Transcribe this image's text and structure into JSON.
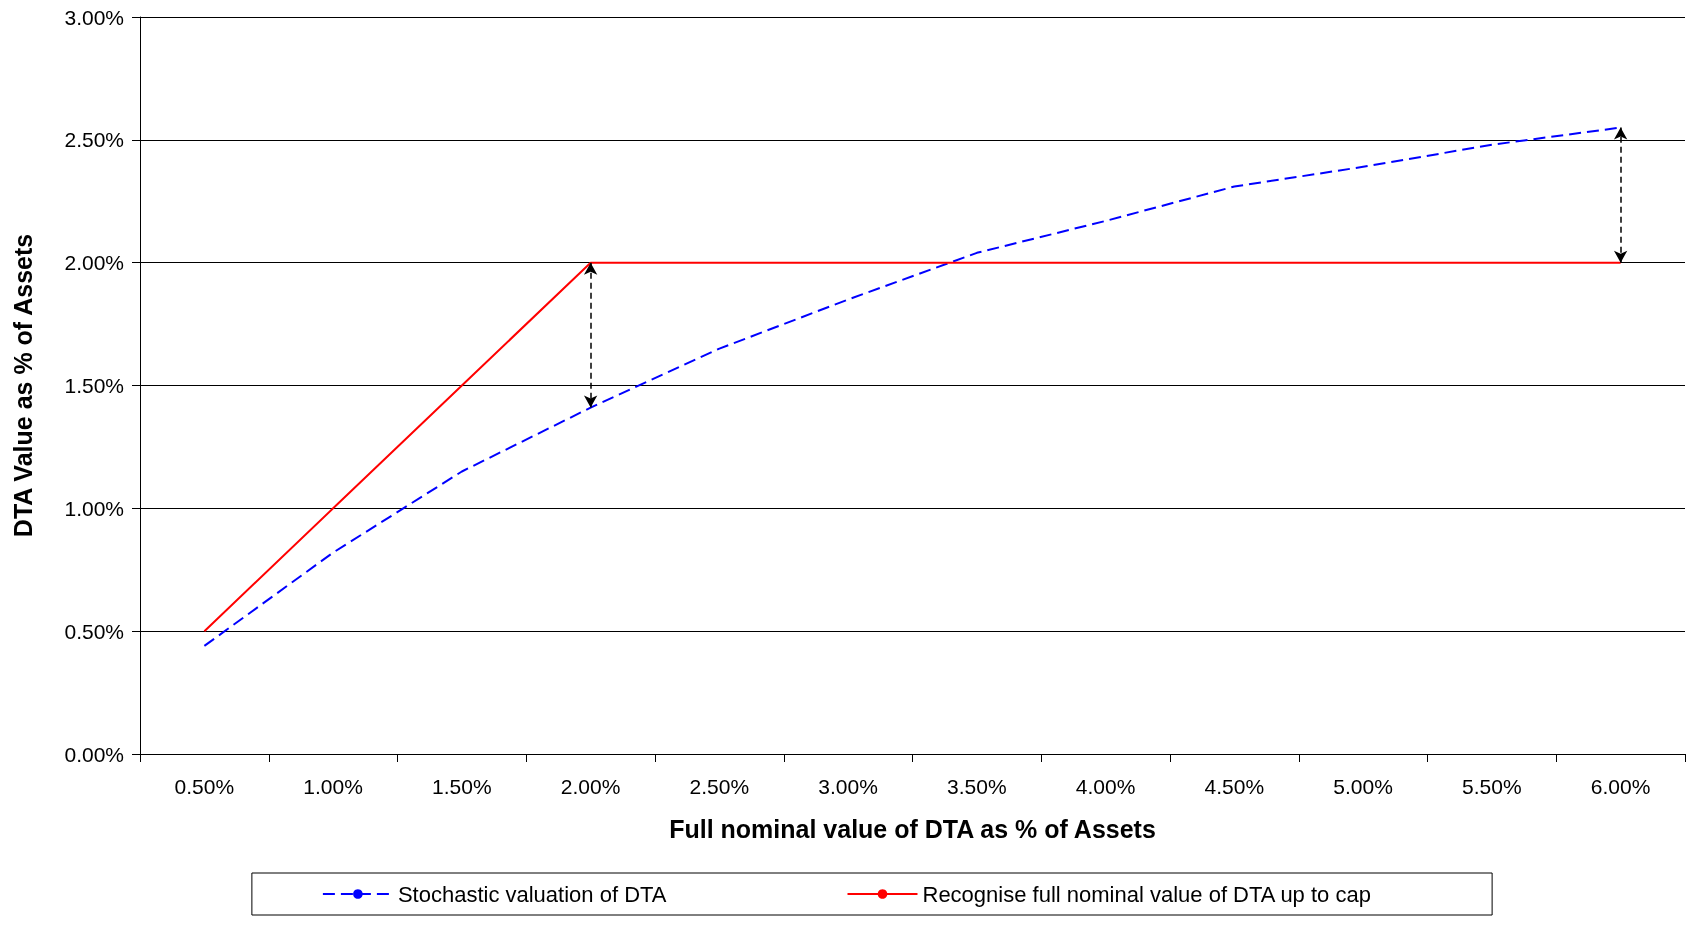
{
  "chart_data": {
    "type": "line",
    "xlabel": "Full nominal value of DTA as % of Assets",
    "ylabel": "DTA Value as % of Assets",
    "categories": [
      "0.50%",
      "1.00%",
      "1.50%",
      "2.00%",
      "2.50%",
      "3.00%",
      "3.50%",
      "4.00%",
      "4.50%",
      "5.00%",
      "5.50%",
      "6.00%"
    ],
    "series": [
      {
        "name": "Stochastic valuation of DTA",
        "color": "#0000ff",
        "line_style": "dashed",
        "values": [
          0.44,
          0.82,
          1.15,
          1.41,
          1.65,
          1.85,
          2.04,
          2.17,
          2.31,
          2.39,
          2.48,
          2.55
        ]
      },
      {
        "name": "Recognise full nominal value of DTA up to cap",
        "color": "#ff0000",
        "line_style": "solid",
        "values": [
          0.5,
          1.0,
          1.5,
          2.0,
          2.0,
          2.0,
          2.0,
          2.0,
          2.0,
          2.0,
          2.0,
          2.0
        ]
      }
    ],
    "ylim": [
      0,
      3
    ],
    "yticks": [
      {
        "value": 0,
        "label": "0.00%"
      },
      {
        "value": 0.5,
        "label": "0.50%"
      },
      {
        "value": 1,
        "label": "1.00%"
      },
      {
        "value": 1.5,
        "label": "1.50%"
      },
      {
        "value": 2,
        "label": "2.00%"
      },
      {
        "value": 2.5,
        "label": "2.50%"
      },
      {
        "value": 3,
        "label": "3.00%"
      }
    ],
    "grid": "y",
    "legend": "bottom",
    "marker": "none"
  }
}
